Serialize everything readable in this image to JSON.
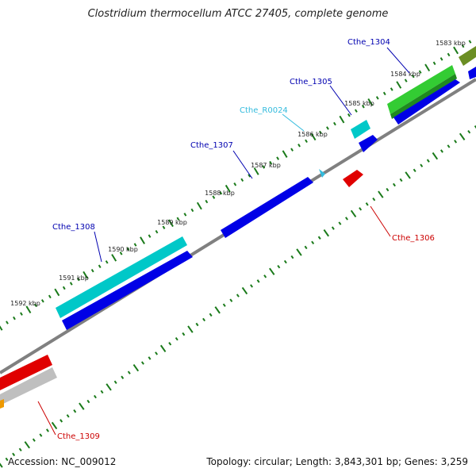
{
  "title": "Clostridium thermocellum ATCC 27405, complete genome",
  "footer": {
    "accession": "Accession: NC_009012",
    "topology": "Topology: circular; Length: 3,843,301 bp; Genes: 3,259"
  },
  "colors": {
    "backbone": "#808080",
    "minor_tick": "#1a7a1a",
    "major_tick": "#0d6b0d",
    "forward_cds": "#00c8c8",
    "reverse_cds": "#0000e6",
    "rrna_trna": "#33cc33",
    "reverse_feature": "#e00000",
    "olive_feature": "#6b8e23",
    "gray_feature": "#bfbfbf",
    "label_blue": "#0000b0",
    "label_cyan": "#33bbdd",
    "label_red": "#cc0000"
  },
  "scale_labels": [
    "1583 kbp",
    "1584 kbp",
    "1585 kbp",
    "1586 kbp",
    "1587 kbp",
    "1588 kbp",
    "1589 kbp",
    "1590 kbp",
    "1591 kbp",
    "1592 kbp"
  ],
  "gene_labels": {
    "cthe_1304": "Cthe_1304",
    "cthe_1305": "Cthe_1305",
    "cthe_r0024": "Cthe_R0024",
    "cthe_1307": "Cthe_1307",
    "cthe_1306": "Cthe_1306",
    "cthe_1308": "Cthe_1308",
    "cthe_1309": "Cthe_1309"
  }
}
